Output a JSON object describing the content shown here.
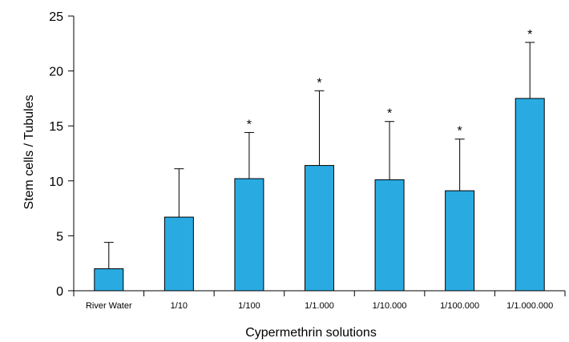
{
  "chart_data": {
    "type": "bar",
    "title": "",
    "xlabel": "Cypermethrin solutions",
    "ylabel": "Stem cells / Tubules",
    "ylim": [
      0,
      25
    ],
    "yticks": [
      0,
      5,
      10,
      15,
      20,
      25
    ],
    "categories": [
      "River Water",
      "1/10",
      "1/100",
      "1/1.000",
      "1/10.000",
      "1/100.000",
      "1/1.000.000"
    ],
    "values": [
      2.0,
      6.7,
      10.2,
      11.4,
      10.1,
      9.1,
      17.5
    ],
    "error_upper": [
      2.4,
      4.4,
      4.2,
      6.8,
      5.3,
      4.7,
      5.1
    ],
    "significance_marker": "*",
    "significant": [
      false,
      false,
      true,
      true,
      true,
      true,
      true
    ],
    "bar_color": "#29abe2",
    "grid": false,
    "legend": "none"
  }
}
